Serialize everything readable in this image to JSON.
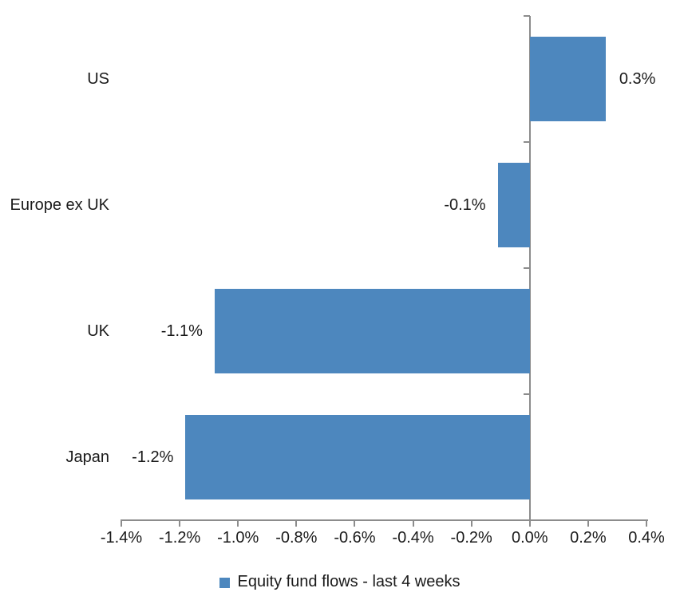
{
  "chart_data": {
    "type": "bar",
    "orientation": "horizontal",
    "categories": [
      "US",
      "Europe ex UK",
      "UK",
      "Japan"
    ],
    "series": [
      {
        "name": "Equity fund flows - last 4 weeks",
        "values": [
          0.26,
          -0.11,
          -1.08,
          -1.18
        ],
        "data_labels": [
          "0.3%",
          "-0.1%",
          "-1.1%",
          "-1.2%"
        ]
      }
    ],
    "xlim": [
      -1.4,
      0.4
    ],
    "x_tick_values": [
      -1.4,
      -1.2,
      -1.0,
      -0.8,
      -0.6,
      -0.4,
      -0.2,
      0.0,
      0.2,
      0.4
    ],
    "x_tick_labels": [
      "-1.4%",
      "-1.2%",
      "-1.0%",
      "-0.8%",
      "-0.6%",
      "-0.4%",
      "-0.2%",
      "0.0%",
      "0.2%",
      "0.4%"
    ],
    "grid": false,
    "legend_position": "bottom",
    "colors": {
      "bar": "#4d87be",
      "axis": "#8c8c8c",
      "text": "#1a1a1a",
      "background": "#ffffff"
    }
  },
  "legend": {
    "label": "Equity fund flows - last 4 weeks",
    "marker_color": "#4d87be"
  }
}
